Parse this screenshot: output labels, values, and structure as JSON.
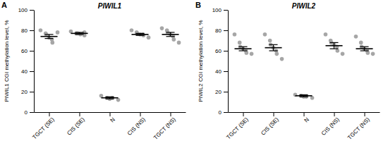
{
  "chart_data": [
    {
      "type": "dot",
      "panel_label": "A",
      "title": "PIWIL1",
      "y_label": "PIWIL1 CGI methylation level, %",
      "categories": [
        "TGCT (SE)",
        "CIS (SE)",
        "N",
        "CIS (NS)",
        "TGCT (NS)"
      ],
      "points": [
        [
          80,
          77,
          76,
          73,
          71,
          68,
          78
        ],
        [
          79,
          77,
          77,
          76,
          75,
          78
        ],
        [
          16,
          14,
          13,
          14,
          12
        ],
        [
          80,
          78,
          77,
          76,
          76,
          75,
          73
        ],
        [
          82,
          80,
          78,
          76,
          74,
          71,
          68
        ]
      ],
      "means": [
        74,
        77,
        14,
        76,
        76
      ],
      "errors": [
        2,
        1,
        1,
        1,
        2
      ],
      "color": "#a6a6a6",
      "ylim": [
        0,
        100
      ],
      "yticks": [
        0,
        20,
        40,
        60,
        80,
        100
      ]
    },
    {
      "type": "dot",
      "panel_label": "B",
      "title": "PIWIL2",
      "y_label": "PIWIL2 CGI methylation level, %",
      "categories": [
        "TGCT (SE)",
        "CIS (SE)",
        "N",
        "CIS (NS)",
        "TGCT (NS)"
      ],
      "points": [
        [
          76,
          68,
          64,
          62,
          60,
          58,
          57
        ],
        [
          76,
          70,
          66,
          63,
          60,
          57,
          52
        ],
        [
          17,
          16,
          15,
          15,
          14
        ],
        [
          76,
          70,
          68,
          66,
          64,
          60,
          57
        ],
        [
          74,
          68,
          64,
          62,
          60,
          58,
          57
        ]
      ],
      "means": [
        62,
        63,
        16,
        65,
        62
      ],
      "errors": [
        2,
        3,
        1,
        3,
        2
      ],
      "color": "#a6a6a6",
      "ylim": [
        0,
        100
      ],
      "yticks": [
        0,
        20,
        40,
        60,
        80,
        100
      ]
    }
  ]
}
